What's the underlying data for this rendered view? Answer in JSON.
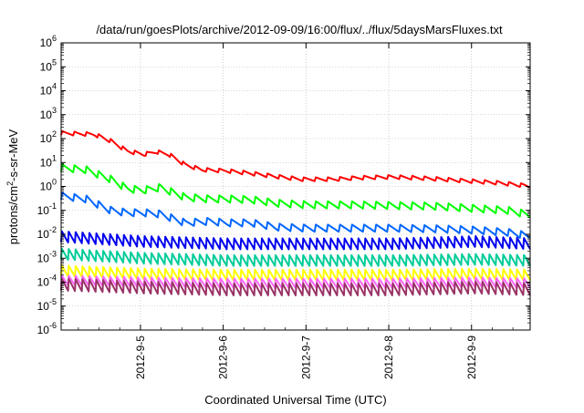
{
  "chart_data": {
    "type": "line",
    "title": "/data/run/goesPlots/archive/2012-09-09/16:00/flux/../flux/5daysMarsFluxes.txt",
    "xlabel": "Coordinated Universal Time (UTC)",
    "ylabel": "protons/cm2-s-sr-MeV",
    "ylabel_base": "protons/cm",
    "ylabel_sup": "2",
    "ylabel_rest": "-s-sr-MeV",
    "yscale": "log",
    "ylim": [
      1e-06,
      1000000.0
    ],
    "xlim": [
      "2012-09-04 01:00",
      "2012-09-09 17:00"
    ],
    "grid": true,
    "y_ticks": [
      {
        "value": -6,
        "base": "10",
        "exp": "-6"
      },
      {
        "value": -5,
        "base": "10",
        "exp": "-5"
      },
      {
        "value": -4,
        "base": "10",
        "exp": "-4"
      },
      {
        "value": -3,
        "base": "10",
        "exp": "-3"
      },
      {
        "value": -2,
        "base": "10",
        "exp": "-2"
      },
      {
        "value": -1,
        "base": "10",
        "exp": "-1"
      },
      {
        "value": 0,
        "base": "10",
        "exp": "0"
      },
      {
        "value": 1,
        "base": "10",
        "exp": "1"
      },
      {
        "value": 2,
        "base": "10",
        "exp": "2"
      },
      {
        "value": 3,
        "base": "10",
        "exp": "3"
      },
      {
        "value": 4,
        "base": "10",
        "exp": "4"
      },
      {
        "value": 5,
        "base": "10",
        "exp": "5"
      },
      {
        "value": 6,
        "base": "10",
        "exp": "6"
      }
    ],
    "x_ticks": [
      {
        "label": "2012-9-5",
        "day": 1
      },
      {
        "label": "2012-9-6",
        "day": 2
      },
      {
        "label": "2012-9-7",
        "day": 3
      },
      {
        "label": "2012-9-8",
        "day": 4
      },
      {
        "label": "2012-9-9",
        "day": 5
      }
    ],
    "series": [
      {
        "color": "#ff0000",
        "sawtooth_period_hours": 3.5,
        "sawtooth_amplitude_decades": 0.16,
        "points": [
          [
            0.0,
            170
          ],
          [
            0.4,
            150
          ],
          [
            0.6,
            80
          ],
          [
            0.8,
            30
          ],
          [
            1.0,
            22
          ],
          [
            1.15,
            28
          ],
          [
            1.3,
            22
          ],
          [
            1.5,
            8
          ],
          [
            1.7,
            5
          ],
          [
            2.0,
            4.5
          ],
          [
            2.3,
            3.5
          ],
          [
            2.6,
            2.6
          ],
          [
            2.9,
            2.0
          ],
          [
            3.3,
            2.0
          ],
          [
            3.6,
            2.3
          ],
          [
            4.0,
            2.5
          ],
          [
            4.4,
            2.2
          ],
          [
            4.8,
            1.8
          ],
          [
            5.3,
            1.4
          ],
          [
            5.7,
            1.0
          ]
        ]
      },
      {
        "color": "#00ff00",
        "sawtooth_period_hours": 3.5,
        "sawtooth_amplitude_decades": 0.3,
        "points": [
          [
            0.0,
            6
          ],
          [
            0.3,
            5
          ],
          [
            0.6,
            2
          ],
          [
            0.8,
            0.8
          ],
          [
            1.0,
            0.7
          ],
          [
            1.2,
            0.9
          ],
          [
            1.5,
            0.35
          ],
          [
            1.8,
            0.3
          ],
          [
            2.0,
            0.3
          ],
          [
            2.3,
            0.28
          ],
          [
            2.6,
            0.2
          ],
          [
            3.0,
            0.17
          ],
          [
            3.5,
            0.17
          ],
          [
            4.0,
            0.16
          ],
          [
            4.5,
            0.15
          ],
          [
            5.0,
            0.12
          ],
          [
            5.4,
            0.1
          ],
          [
            5.7,
            0.06
          ]
        ]
      },
      {
        "color": "#0066ff",
        "sawtooth_period_hours": 3.5,
        "sawtooth_amplitude_decades": 0.3,
        "points": [
          [
            0.0,
            0.4
          ],
          [
            0.3,
            0.3
          ],
          [
            0.6,
            0.1
          ],
          [
            0.8,
            0.08
          ],
          [
            1.0,
            0.08
          ],
          [
            1.2,
            0.07
          ],
          [
            1.5,
            0.03
          ],
          [
            1.8,
            0.035
          ],
          [
            2.0,
            0.03
          ],
          [
            2.3,
            0.03
          ],
          [
            2.6,
            0.02
          ],
          [
            3.0,
            0.018
          ],
          [
            3.5,
            0.018
          ],
          [
            4.0,
            0.018
          ],
          [
            4.5,
            0.017
          ],
          [
            5.0,
            0.015
          ],
          [
            5.4,
            0.012
          ],
          [
            5.7,
            0.008
          ]
        ]
      },
      {
        "color": "#0000ee",
        "sawtooth_period_hours": 2.0,
        "sawtooth_amplitude_decades": 0.45,
        "points": [
          [
            0.0,
            0.008
          ],
          [
            1.0,
            0.005
          ],
          [
            2.0,
            0.004
          ],
          [
            3.0,
            0.004
          ],
          [
            4.0,
            0.004
          ],
          [
            5.0,
            0.005
          ],
          [
            5.7,
            0.004
          ]
        ]
      },
      {
        "color": "#00cc99",
        "sawtooth_period_hours": 2.0,
        "sawtooth_amplitude_decades": 0.45,
        "points": [
          [
            0.0,
            0.0015
          ],
          [
            1.0,
            0.001
          ],
          [
            2.0,
            0.0008
          ],
          [
            3.0,
            0.0008
          ],
          [
            4.0,
            0.0008
          ],
          [
            5.0,
            0.0009
          ],
          [
            5.7,
            0.0008
          ]
        ]
      },
      {
        "color": "#ffff00",
        "sawtooth_period_hours": 2.0,
        "sawtooth_amplitude_decades": 0.45,
        "points": [
          [
            0.0,
            0.0003
          ],
          [
            1.0,
            0.00022
          ],
          [
            2.0,
            0.0002
          ],
          [
            3.0,
            0.0002
          ],
          [
            4.0,
            0.0002
          ],
          [
            5.0,
            0.00022
          ],
          [
            5.7,
            0.0002
          ]
        ]
      },
      {
        "color": "#ff66ff",
        "sawtooth_period_hours": 2.0,
        "sawtooth_amplitude_decades": 0.4,
        "points": [
          [
            0.0,
            0.00012
          ],
          [
            1.0,
            0.0001
          ],
          [
            2.0,
            9e-05
          ],
          [
            3.0,
            9e-05
          ],
          [
            4.0,
            9e-05
          ],
          [
            5.0,
            0.0001
          ],
          [
            5.7,
            9e-05
          ]
        ]
      },
      {
        "color": "#993366",
        "sawtooth_period_hours": 2.0,
        "sawtooth_amplitude_decades": 0.5,
        "points": [
          [
            0.0,
            8e-05
          ],
          [
            1.0,
            6e-05
          ],
          [
            2.0,
            5e-05
          ],
          [
            3.0,
            5e-05
          ],
          [
            4.0,
            5e-05
          ],
          [
            5.0,
            6e-05
          ],
          [
            5.7,
            5e-05
          ]
        ]
      }
    ]
  }
}
